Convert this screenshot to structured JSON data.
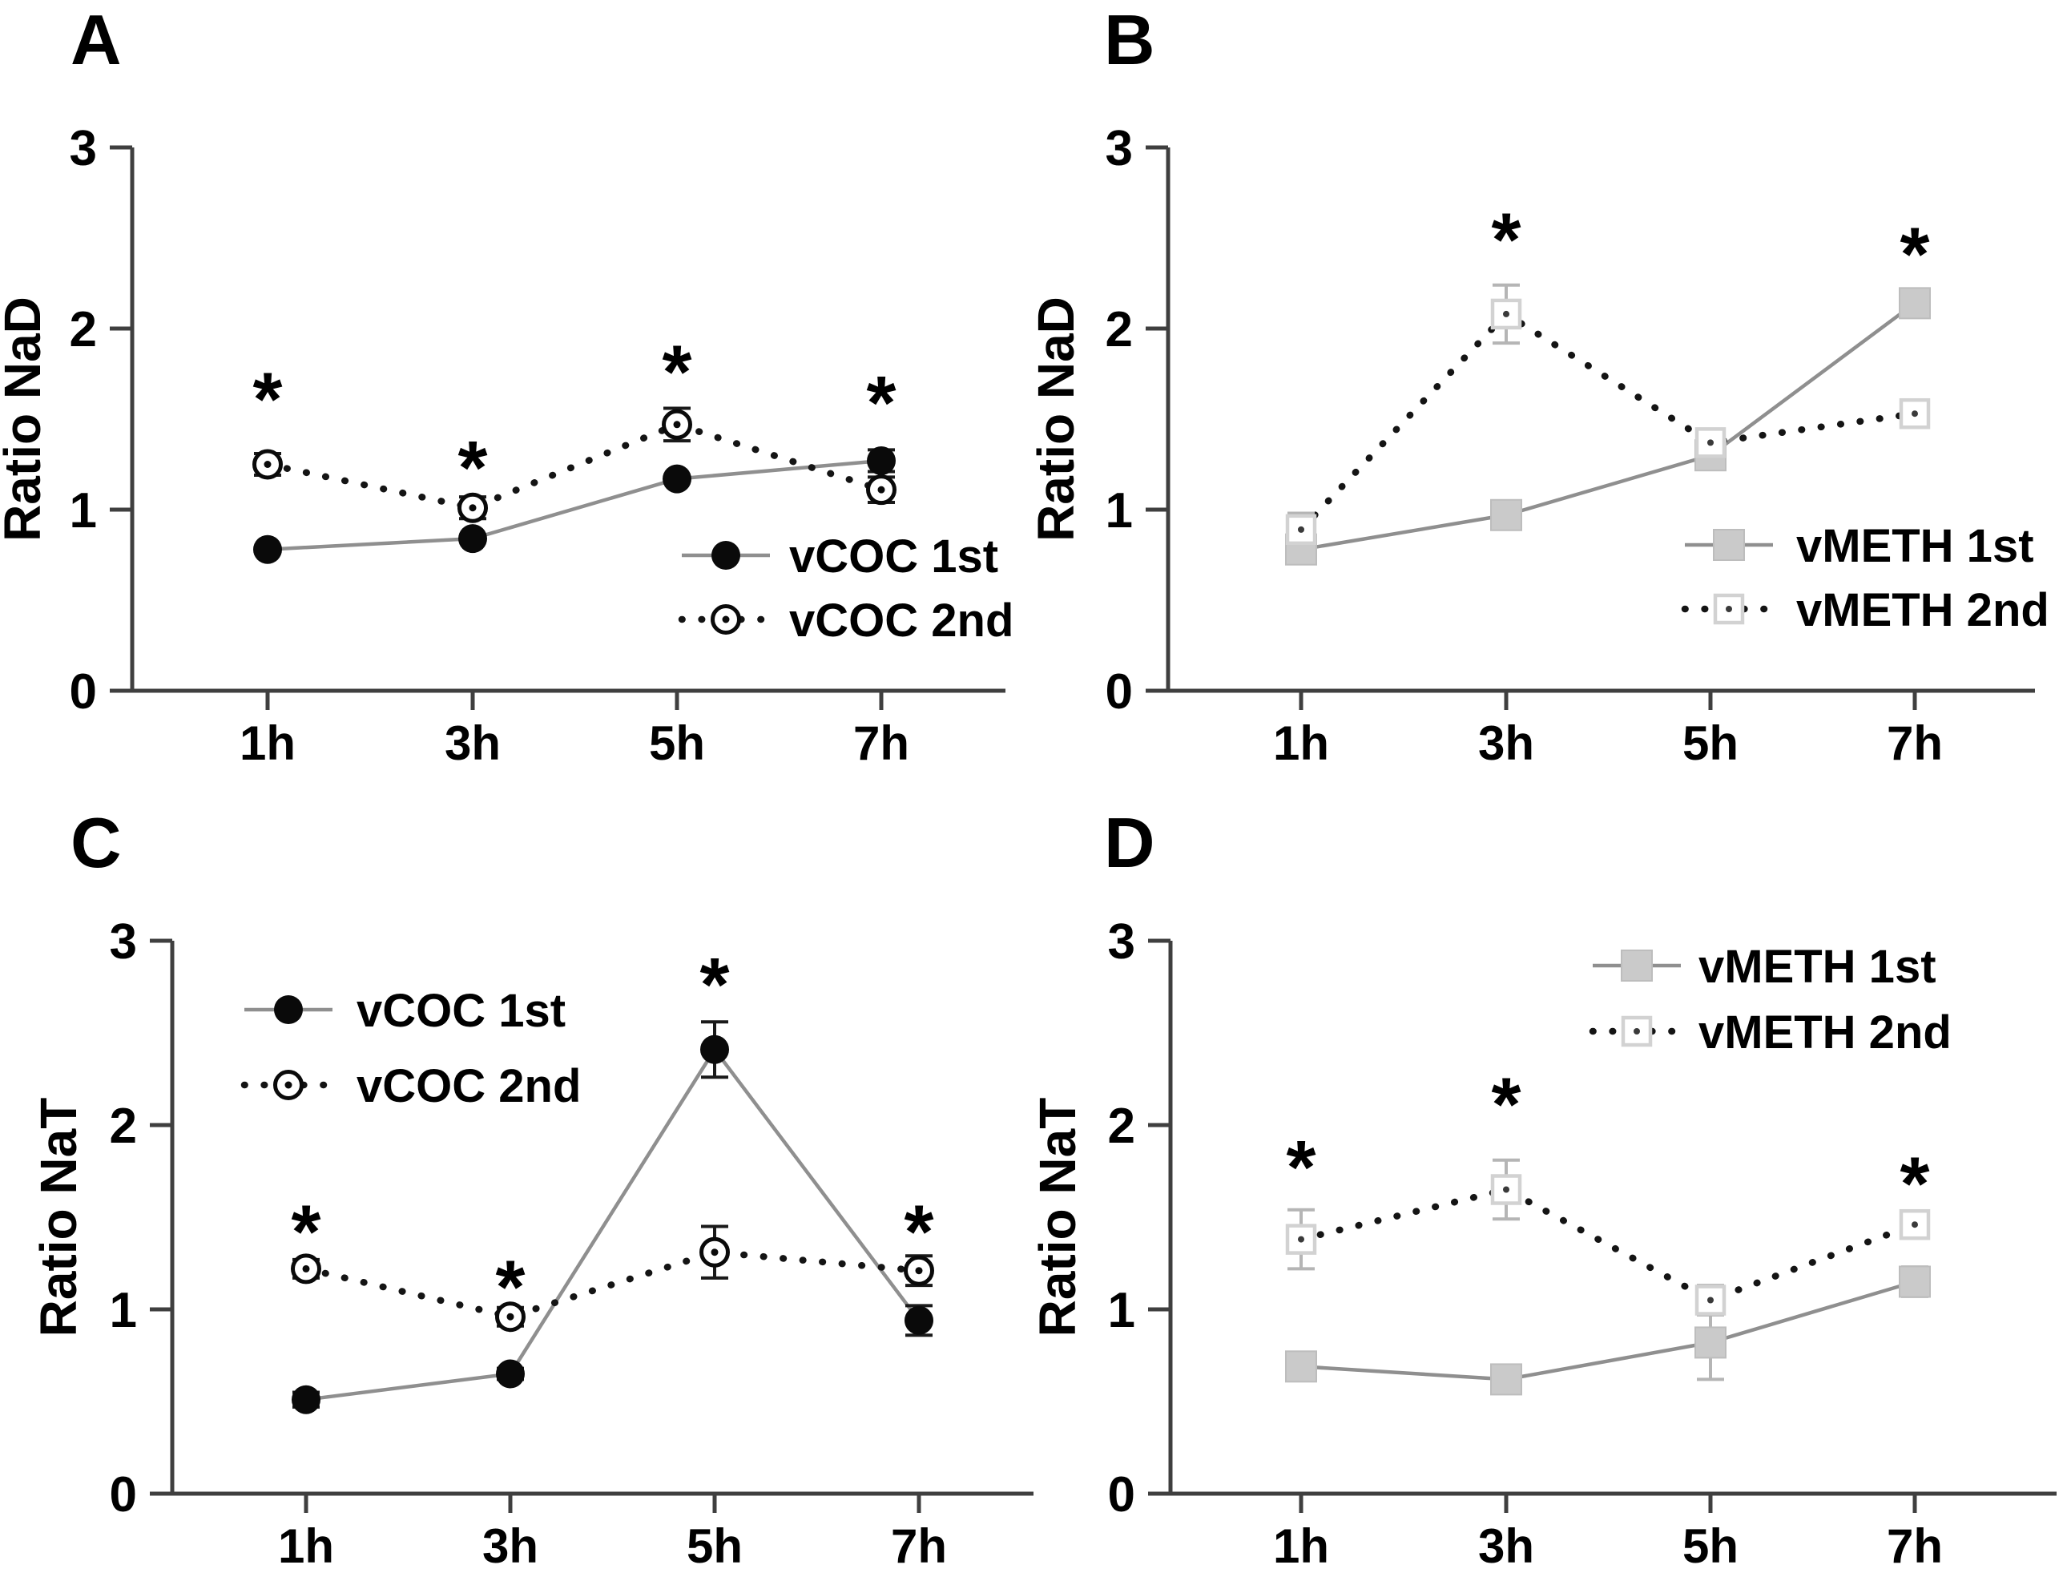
{
  "figure": {
    "background": "#ffffff",
    "description": "Four-panel line chart figure: Ratio NaD and Ratio NaT over time for vCOC and vMETH groups"
  },
  "colors": {
    "axis": "#3f3f3f",
    "text": "#000000",
    "star": "#000000",
    "solid_gray_line": "#8f8f8f",
    "dotted_black_line": "#141414",
    "black_marker": "#0a0a0a",
    "gray_square_fill": "#cacaca",
    "gray_square_stroke": "#bdbdbd",
    "open_square_stroke": "#d2d2d2",
    "open_marker_fill": "#ffffff",
    "vcoc_error": "#1a1a1a",
    "vmeth_error": "#b5b5b5"
  },
  "chart_data": [
    {
      "panel": "A",
      "type": "line",
      "title": "",
      "xlabel": "",
      "ylabel": "Ratio NaD",
      "categories": [
        "1h",
        "3h",
        "5h",
        "7h"
      ],
      "ylim": [
        0,
        3
      ],
      "yticks": [
        "0",
        "1",
        "2",
        "3"
      ],
      "grid": false,
      "legend_position": "bottom-right",
      "series": [
        {
          "name": "vCOC 1st",
          "marker": "filled-circle",
          "line": "solid",
          "marker_color": "#0a0a0a",
          "marker_stroke": "#0a0a0a",
          "line_color": "#8f8f8f",
          "error_color": "#1a1a1a",
          "values": [
            0.78,
            0.84,
            1.17,
            1.27
          ],
          "errors": [
            0,
            0,
            0,
            0.06
          ]
        },
        {
          "name": "vCOC 2nd",
          "marker": "open-circle",
          "line": "dotted",
          "marker_color": "#ffffff",
          "marker_stroke": "#0a0a0a",
          "line_color": "#141414",
          "error_color": "#1a1a1a",
          "values": [
            1.25,
            1.01,
            1.47,
            1.11
          ],
          "errors": [
            0.06,
            0.06,
            0.09,
            0.07
          ]
        }
      ],
      "significance_stars": [
        {
          "category": "1h",
          "y": 1.68
        },
        {
          "category": "3h",
          "y": 1.3
        },
        {
          "category": "5h",
          "y": 1.83
        },
        {
          "category": "7h",
          "y": 1.66
        }
      ]
    },
    {
      "panel": "B",
      "type": "line",
      "title": "",
      "xlabel": "",
      "ylabel": "Ratio NaD",
      "categories": [
        "1h",
        "3h",
        "5h",
        "7h"
      ],
      "ylim": [
        0,
        3
      ],
      "yticks": [
        "0",
        "1",
        "2",
        "3"
      ],
      "grid": false,
      "legend_position": "bottom-right",
      "series": [
        {
          "name": "vMETH 1st",
          "marker": "filled-square",
          "line": "solid",
          "marker_color": "#cacaca",
          "marker_stroke": "#bdbdbd",
          "line_color": "#8f8f8f",
          "error_color": "#b5b5b5",
          "values": [
            0.78,
            0.97,
            1.3,
            2.14
          ],
          "errors": [
            0.03,
            0.03,
            0.07,
            0.04
          ]
        },
        {
          "name": "vMETH 2nd",
          "marker": "open-square",
          "line": "dotted",
          "marker_color": "#ffffff",
          "marker_stroke": "#d2d2d2",
          "line_color": "#141414",
          "error_color": "#b5b5b5",
          "values": [
            0.89,
            2.08,
            1.37,
            1.53
          ],
          "errors": [
            0.09,
            0.16,
            0.05,
            0.04
          ]
        }
      ],
      "significance_stars": [
        {
          "category": "3h",
          "y": 2.56
        },
        {
          "category": "7h",
          "y": 2.48
        }
      ]
    },
    {
      "panel": "C",
      "type": "line",
      "title": "",
      "xlabel": "",
      "ylabel": "Ratio NaT",
      "categories": [
        "1h",
        "3h",
        "5h",
        "7h"
      ],
      "ylim": [
        0,
        3
      ],
      "yticks": [
        "0",
        "1",
        "2",
        "3"
      ],
      "grid": false,
      "legend_position": "top-left",
      "series": [
        {
          "name": "vCOC 1st",
          "marker": "filled-circle",
          "line": "solid",
          "marker_color": "#0a0a0a",
          "marker_stroke": "#0a0a0a",
          "line_color": "#8f8f8f",
          "error_color": "#1a1a1a",
          "values": [
            0.51,
            0.65,
            2.41,
            0.94
          ],
          "errors": [
            0.04,
            0.03,
            0.15,
            0.08
          ]
        },
        {
          "name": "vCOC 2nd",
          "marker": "open-circle",
          "line": "dotted",
          "marker_color": "#ffffff",
          "marker_stroke": "#0a0a0a",
          "line_color": "#141414",
          "error_color": "#1a1a1a",
          "values": [
            1.22,
            0.96,
            1.31,
            1.21
          ],
          "errors": [
            0.05,
            0.05,
            0.14,
            0.08
          ]
        }
      ],
      "significance_stars": [
        {
          "category": "1h",
          "y": 1.49
        },
        {
          "category": "3h",
          "y": 1.19
        },
        {
          "category": "5h",
          "y": 2.83
        },
        {
          "category": "7h",
          "y": 1.49
        }
      ]
    },
    {
      "panel": "D",
      "type": "line",
      "title": "",
      "xlabel": "",
      "ylabel": "Ratio NaT",
      "categories": [
        "1h",
        "3h",
        "5h",
        "7h"
      ],
      "ylim": [
        0,
        3
      ],
      "yticks": [
        "0",
        "1",
        "2",
        "3"
      ],
      "grid": false,
      "legend_position": "top-right",
      "series": [
        {
          "name": "vMETH 1st",
          "marker": "filled-square",
          "line": "solid",
          "marker_color": "#cacaca",
          "marker_stroke": "#bdbdbd",
          "line_color": "#8f8f8f",
          "error_color": "#b5b5b5",
          "values": [
            0.69,
            0.62,
            0.82,
            1.15
          ],
          "errors": [
            0.04,
            0.03,
            0.2,
            0.08
          ]
        },
        {
          "name": "vMETH 2nd",
          "marker": "open-square",
          "line": "dotted",
          "marker_color": "#ffffff",
          "marker_stroke": "#d2d2d2",
          "line_color": "#141414",
          "error_color": "#b5b5b5",
          "values": [
            1.38,
            1.65,
            1.05,
            1.46
          ],
          "errors": [
            0.16,
            0.16,
            0.08,
            0.07
          ]
        }
      ],
      "significance_stars": [
        {
          "category": "1h",
          "y": 1.84
        },
        {
          "category": "3h",
          "y": 2.18
        },
        {
          "category": "7h",
          "y": 1.75
        }
      ]
    }
  ]
}
